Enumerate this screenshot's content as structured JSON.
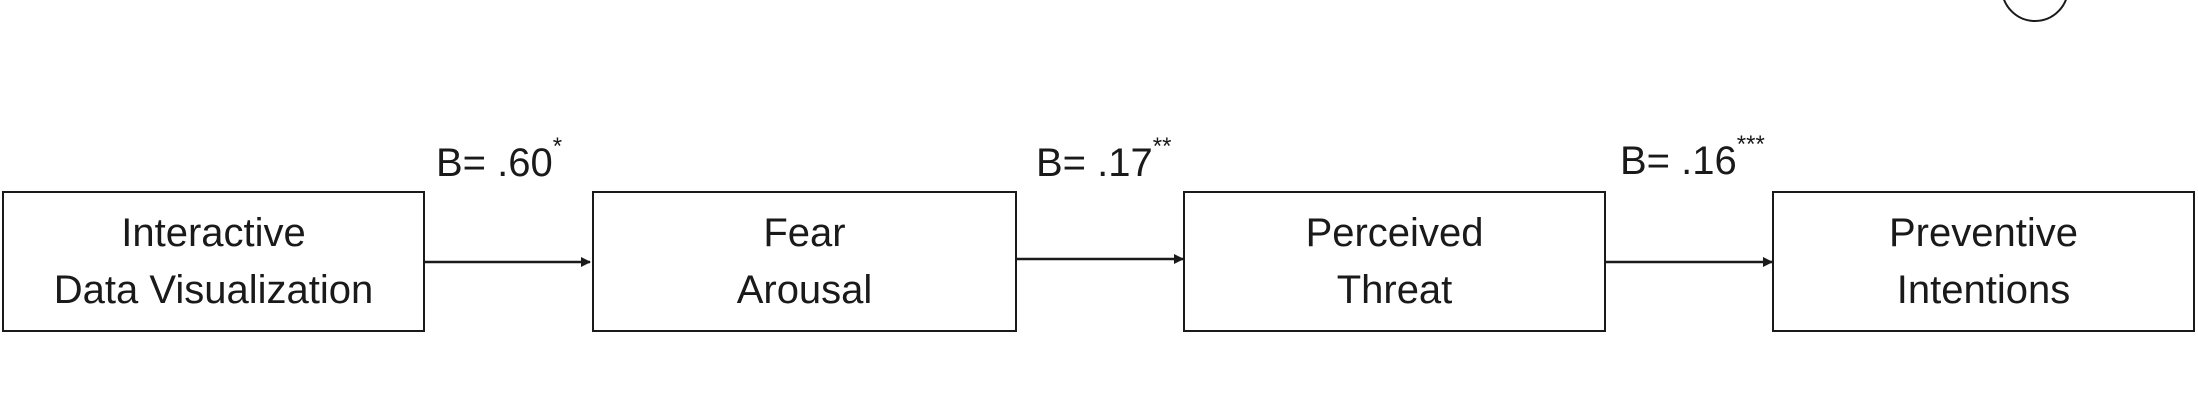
{
  "nodes": [
    {
      "line1": "Interactive",
      "line2": "Data Visualization"
    },
    {
      "line1": "Fear",
      "line2": "Arousal"
    },
    {
      "line1": "Perceived",
      "line2": "Threat"
    },
    {
      "line1": "Preventive",
      "line2": "Intentions"
    }
  ],
  "paths": [
    {
      "coefficient": "B= .60",
      "significance": "*"
    },
    {
      "coefficient": "B= .17",
      "significance": "**"
    },
    {
      "coefficient": "B= .16",
      "significance": "***"
    }
  ],
  "colors": {
    "stroke": "#1a1a1a",
    "background": "#ffffff"
  }
}
